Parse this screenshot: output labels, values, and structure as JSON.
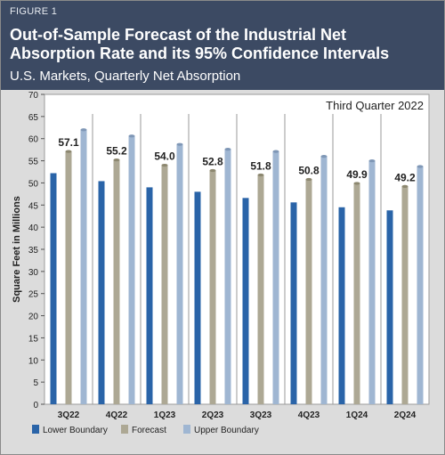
{
  "figure_label": "FIGURE 1",
  "title_line1": "Out-of-Sample Forecast of the Industrial Net",
  "title_line2": "Absorption Rate and its 95% Confidence Intervals",
  "subtitle": "U.S. Markets, Quarterly Net Absorption",
  "chart_data": {
    "type": "bar",
    "annotation": "Third Quarter 2022",
    "ylabel": "Square Feet in Millions",
    "ylim": [
      0,
      70
    ],
    "yticks": [
      0,
      5,
      10,
      15,
      20,
      25,
      30,
      35,
      40,
      45,
      50,
      55,
      60,
      65,
      70
    ],
    "categories": [
      "3Q22",
      "4Q22",
      "1Q23",
      "2Q23",
      "3Q23",
      "4Q23",
      "1Q24",
      "2Q24"
    ],
    "series": [
      {
        "name": "Lower Boundary",
        "color": "#2a64a8",
        "values": [
          52.2,
          50.4,
          49.0,
          48.0,
          46.6,
          45.6,
          44.5,
          43.8
        ]
      },
      {
        "name": "Forecast",
        "color": "#ada894",
        "values": [
          57.1,
          55.2,
          54.0,
          52.8,
          51.8,
          50.8,
          49.9,
          49.2
        ]
      },
      {
        "name": "Upper Boundary",
        "color": "#9fb6d2",
        "values": [
          62.0,
          60.6,
          58.7,
          57.6,
          57.1,
          56.0,
          55.0,
          53.7
        ]
      }
    ],
    "data_labels": [
      "57.1",
      "55.2",
      "54.0",
      "52.8",
      "51.8",
      "50.8",
      "49.9",
      "49.2"
    ],
    "legend": "bottom"
  }
}
